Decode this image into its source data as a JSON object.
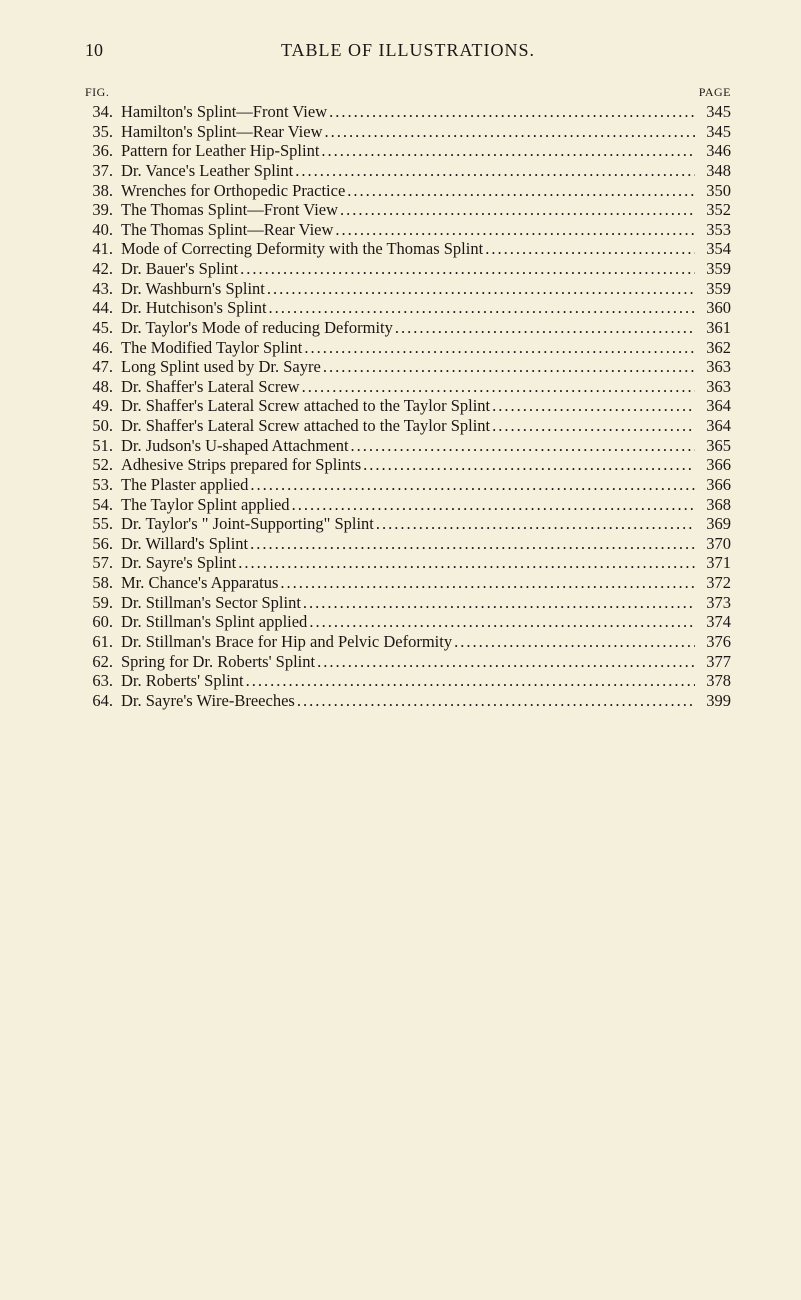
{
  "page": {
    "top_page_number": "10",
    "title": "TABLE OF ILLUSTRATIONS.",
    "col_fig_label": "FIG.",
    "col_page_label": "PAGE",
    "background_color": "#f5f0dc",
    "text_color": "#1a1614",
    "font_family": "Georgia, Times New Roman, serif",
    "body_fontsize": 16.5,
    "title_fontsize": 18
  },
  "entries": [
    {
      "fig": "34.",
      "text": "Hamilton's Splint—Front View",
      "page": "345"
    },
    {
      "fig": "35.",
      "text": "Hamilton's Splint—Rear View",
      "page": "345"
    },
    {
      "fig": "36.",
      "text": "Pattern for Leather Hip-Splint",
      "page": "346"
    },
    {
      "fig": "37.",
      "text": "Dr. Vance's Leather Splint",
      "page": "348"
    },
    {
      "fig": "38.",
      "text": "Wrenches for Orthopedic Practice",
      "page": "350"
    },
    {
      "fig": "39.",
      "text": "The Thomas Splint—Front View",
      "page": "352"
    },
    {
      "fig": "40.",
      "text": "The Thomas Splint—Rear View",
      "page": "353"
    },
    {
      "fig": "41.",
      "text": "Mode of Correcting Deformity with the Thomas Splint",
      "page": "354"
    },
    {
      "fig": "42.",
      "text": "Dr. Bauer's Splint",
      "page": "359"
    },
    {
      "fig": "43.",
      "text": "Dr. Washburn's Splint",
      "page": "359"
    },
    {
      "fig": "44.",
      "text": "Dr. Hutchison's Splint",
      "page": "360"
    },
    {
      "fig": "45.",
      "text": "Dr. Taylor's Mode of reducing Deformity",
      "page": "361"
    },
    {
      "fig": "46.",
      "text": "The Modified Taylor Splint",
      "page": "362"
    },
    {
      "fig": "47.",
      "text": "Long Splint used by Dr. Sayre",
      "page": "363"
    },
    {
      "fig": "48.",
      "text": "Dr. Shaffer's Lateral Screw",
      "page": "363"
    },
    {
      "fig": "49.",
      "text": "Dr. Shaffer's Lateral Screw attached to the Taylor Splint",
      "page": "364"
    },
    {
      "fig": "50.",
      "text": "Dr. Shaffer's Lateral Screw attached to the Taylor Splint",
      "page": "364"
    },
    {
      "fig": "51.",
      "text": "Dr. Judson's U-shaped Attachment",
      "page": "365"
    },
    {
      "fig": "52.",
      "text": "Adhesive Strips prepared for Splints",
      "page": "366"
    },
    {
      "fig": "53.",
      "text": "The Plaster applied",
      "page": "366"
    },
    {
      "fig": "54.",
      "text": "The Taylor Splint applied",
      "page": "368"
    },
    {
      "fig": "55.",
      "text": "Dr. Taylor's \" Joint-Supporting\" Splint",
      "page": "369"
    },
    {
      "fig": "56.",
      "text": "Dr. Willard's Splint",
      "page": "370"
    },
    {
      "fig": "57.",
      "text": "Dr. Sayre's Splint",
      "page": "371"
    },
    {
      "fig": "58.",
      "text": "Mr. Chance's Apparatus",
      "page": "372"
    },
    {
      "fig": "59.",
      "text": "Dr. Stillman's Sector Splint",
      "page": "373"
    },
    {
      "fig": "60.",
      "text": "Dr. Stillman's Splint applied",
      "page": "374"
    },
    {
      "fig": "61.",
      "text": "Dr. Stillman's Brace for Hip and Pelvic Deformity",
      "page": "376"
    },
    {
      "fig": "62.",
      "text": "Spring for Dr. Roberts' Splint",
      "page": "377"
    },
    {
      "fig": "63.",
      "text": "Dr. Roberts' Splint",
      "page": "378"
    },
    {
      "fig": "64.",
      "text": "Dr. Sayre's Wire-Breeches",
      "page": "399"
    }
  ]
}
